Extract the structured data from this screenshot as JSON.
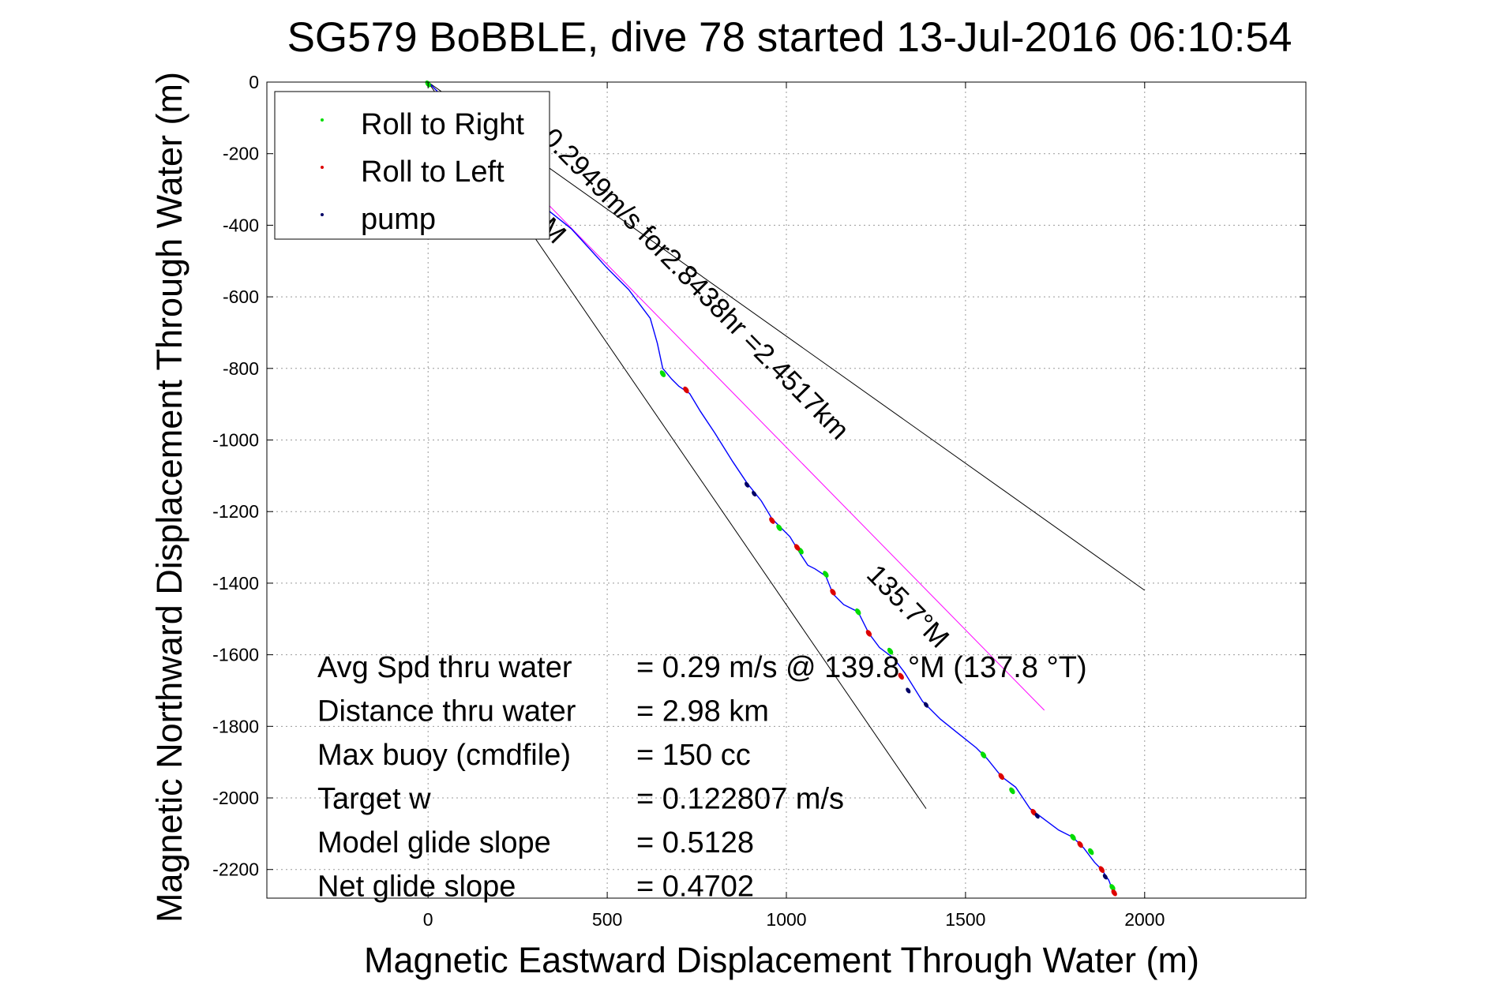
{
  "chart_data": {
    "type": "line",
    "title": "SG579 BoBBLE, dive 78 started 13-Jul-2016 06:10:54",
    "xlabel": "Magnetic Eastward Displacement Through Water (m)",
    "ylabel": "Magnetic Northward Displacement Through Water (m)",
    "xlim": [
      -450,
      2450
    ],
    "ylim": [
      -2280,
      0
    ],
    "xticks": [
      0,
      500,
      1000,
      1500,
      2000
    ],
    "xtick_labels": [
      "0",
      "500",
      "1000",
      "1500",
      "2000"
    ],
    "yticks": [
      0,
      -200,
      -400,
      -600,
      -800,
      -1000,
      -1200,
      -1400,
      -1600,
      -1800,
      -2000,
      -2200
    ],
    "ytick_labels": [
      "0",
      "-200",
      "-400",
      "-600",
      "-800",
      "-1000",
      "-1200",
      "-1400",
      "-1600",
      "-1800",
      "-2000",
      "-2200"
    ],
    "grid": true,
    "legend_position": "top-left",
    "legend": [
      {
        "label": "Roll to Right",
        "color": "#00dd00"
      },
      {
        "label": "Roll to Left",
        "color": "#dd0000"
      },
      {
        "label": "pump",
        "color": "#000066"
      }
    ],
    "series": [
      {
        "label": "track",
        "color": "#0000ff",
        "x": [
          0,
          60,
          120,
          200,
          300,
          400,
          500,
          560,
          620,
          640,
          655,
          680,
          700,
          730,
          760,
          800,
          850,
          890,
          930,
          960,
          980,
          1010,
          1040,
          1060,
          1080,
          1110,
          1130,
          1160,
          1200,
          1230,
          1260,
          1300,
          1330,
          1380,
          1430,
          1480,
          1530,
          1560,
          1600,
          1640,
          1680,
          1720,
          1760,
          1800,
          1830,
          1860,
          1880,
          1900,
          1915
        ],
        "y": [
          0,
          -60,
          -130,
          -230,
          -330,
          -410,
          -520,
          -580,
          -660,
          -730,
          -800,
          -830,
          -850,
          -870,
          -920,
          -980,
          -1060,
          -1120,
          -1170,
          -1220,
          -1240,
          -1270,
          -1320,
          -1350,
          -1360,
          -1380,
          -1430,
          -1460,
          -1480,
          -1540,
          -1580,
          -1610,
          -1650,
          -1730,
          -1780,
          -1820,
          -1860,
          -1890,
          -1940,
          -1970,
          -2030,
          -2060,
          -2090,
          -2110,
          -2140,
          -2180,
          -2200,
          -2230,
          -2270
        ]
      },
      {
        "label": "heading line",
        "color": "#ff00ff",
        "x": [
          0,
          1720
        ],
        "y": [
          0,
          -1755
        ]
      },
      {
        "label": "cone upper",
        "color": "#000000",
        "x": [
          0,
          2000
        ],
        "y": [
          0,
          -1420
        ]
      },
      {
        "label": "cone lower",
        "color": "#000000",
        "x": [
          0,
          1390
        ],
        "y": [
          0,
          -2030
        ]
      }
    ],
    "roll_right_points": [
      [
        0,
        -5
      ],
      [
        655,
        -815
      ],
      [
        980,
        -1245
      ],
      [
        1040,
        -1310
      ],
      [
        1110,
        -1375
      ],
      [
        1200,
        -1480
      ],
      [
        1290,
        -1590
      ],
      [
        1550,
        -1880
      ],
      [
        1630,
        -1980
      ],
      [
        1800,
        -2110
      ],
      [
        1850,
        -2150
      ],
      [
        1910,
        -2250
      ]
    ],
    "roll_left_points": [
      [
        720,
        -860
      ],
      [
        960,
        -1225
      ],
      [
        1030,
        -1300
      ],
      [
        1130,
        -1425
      ],
      [
        1230,
        -1540
      ],
      [
        1320,
        -1660
      ],
      [
        1600,
        -1940
      ],
      [
        1690,
        -2040
      ],
      [
        1820,
        -2130
      ],
      [
        1880,
        -2200
      ],
      [
        1915,
        -2265
      ]
    ],
    "pump_points": [
      [
        890,
        -1125
      ],
      [
        910,
        -1150
      ],
      [
        1340,
        -1700
      ],
      [
        1390,
        -1740
      ],
      [
        1700,
        -2050
      ],
      [
        1890,
        -2220
      ]
    ],
    "annotations": [
      {
        "text": "0.2949m/s for2.8438hr =2.4517km",
        "x": 315,
        "y": -160,
        "angle": 45.5
      },
      {
        "text": "135.7°M",
        "x": 1220,
        "y": -1380,
        "angle": 45.5
      },
      {
        "text": "M",
        "x": 308,
        "y": -410,
        "angle": 45.5
      }
    ],
    "stats": [
      {
        "label": "Avg Spd thru water",
        "value": "=  0.29 m/s @ 139.8 °M (137.8 °T)"
      },
      {
        "label": "Distance thru water",
        "value": "=  2.98 km"
      },
      {
        "label": "Max buoy (cmdfile)",
        "value": "= 150 cc"
      },
      {
        "label": "Target w",
        "value": "= 0.122807 m/s"
      },
      {
        "label": "Model glide slope",
        "value": "= 0.5128"
      },
      {
        "label": "Net glide slope",
        "value": "= 0.4702"
      }
    ]
  }
}
